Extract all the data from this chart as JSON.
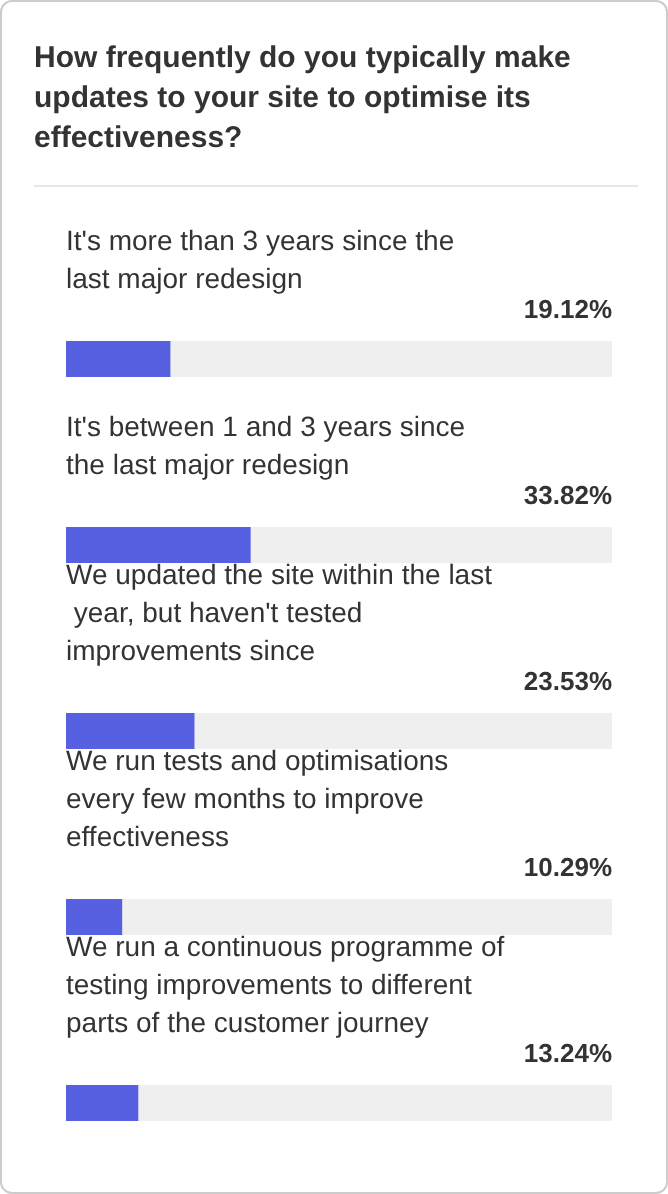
{
  "chart_data": {
    "type": "bar",
    "orientation": "horizontal",
    "title": "How frequently do you typically make updates to your site to optimise its effectiveness?",
    "categories": [
      "It's more than 3 years since the last major redesign",
      "It's between 1 and 3 years since the last major redesign",
      "We updated the site within the last year, but haven't tested improvements since",
      "We run tests and optimisations every few months to improve effectiveness",
      "We run a continuous programme of testing improvements to different parts of the customer journey"
    ],
    "values": [
      19.12,
      33.82,
      23.53,
      10.29,
      13.24
    ],
    "value_labels": [
      "19.12%",
      "33.82%",
      "23.53%",
      "10.29%",
      "13.24%"
    ],
    "color": "#5660e0",
    "xlim": [
      0,
      100
    ]
  }
}
